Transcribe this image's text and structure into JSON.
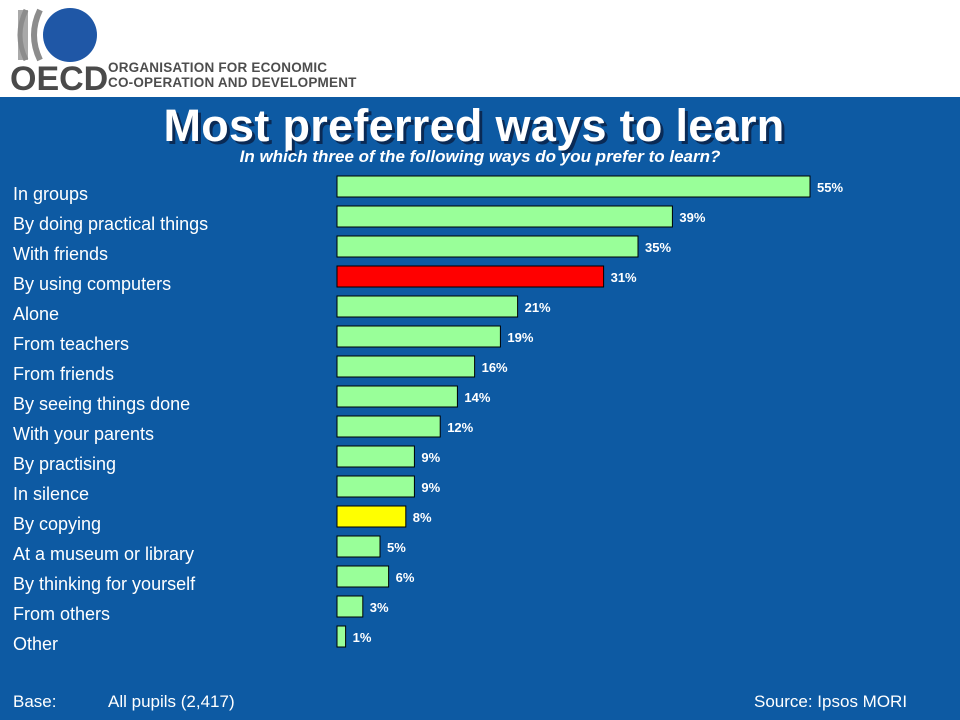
{
  "header": {
    "logo_text": "OECD",
    "org_line1": "ORGANISATION FOR ECONOMIC",
    "org_line2": "CO-OPERATION AND DEVELOPMENT"
  },
  "colors": {
    "background": "#0d5aa3",
    "bar_default": "#99ff99",
    "bar_highlight_red": "#ff0000",
    "bar_highlight_yellow": "#ffff00"
  },
  "chart_data": {
    "type": "bar",
    "orientation": "horizontal",
    "title": "Most preferred ways to learn",
    "subtitle": "In which three of the following ways do you prefer to learn?",
    "categories": [
      "In groups",
      "By doing practical things",
      "With friends",
      "By using computers",
      "Alone",
      "From teachers",
      "From friends",
      "By seeing things done",
      "With your parents",
      "By practising",
      "In silence",
      "By copying",
      "At a museum or library",
      "By thinking for yourself",
      "From others",
      "Other"
    ],
    "values": [
      55,
      39,
      35,
      31,
      21,
      19,
      16,
      14,
      12,
      9,
      9,
      8,
      5,
      6,
      3,
      1
    ],
    "value_labels": [
      "55%",
      "39%",
      "35%",
      "31%",
      "21%",
      "19%",
      "16%",
      "14%",
      "12%",
      "9%",
      "9%",
      "8%",
      "5%",
      "6%",
      "3%",
      "1%"
    ],
    "bar_colors": [
      "#99ff99",
      "#99ff99",
      "#99ff99",
      "#ff0000",
      "#99ff99",
      "#99ff99",
      "#99ff99",
      "#99ff99",
      "#99ff99",
      "#99ff99",
      "#99ff99",
      "#ffff00",
      "#99ff99",
      "#99ff99",
      "#99ff99",
      "#99ff99"
    ],
    "unit": "%",
    "xlim": [
      0,
      55
    ],
    "grid": false,
    "legend": "none"
  },
  "footer": {
    "base_label": "Base:",
    "base_value": "All pupils (2,417)",
    "source": "Source: Ipsos MORI"
  }
}
